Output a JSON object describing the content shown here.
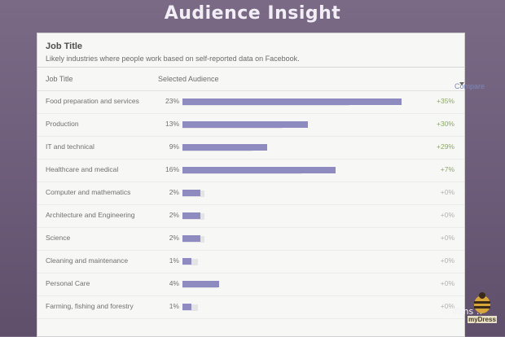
{
  "slide": {
    "title": "Audience Insight"
  },
  "panel": {
    "title": "Job Title",
    "subtitle": "Likely industries where people work based on self-reported data on Facebook.",
    "columns": {
      "job_title": "Job Title",
      "selected_audience": "Selected Audience",
      "compare": "Compare"
    },
    "rows": [
      {
        "label": "Food preparation and services",
        "pct": "23%",
        "value": 0.96,
        "compare": "+35%"
      },
      {
        "label": "Production",
        "pct": "13%",
        "value": 0.55,
        "compare": "+30%"
      },
      {
        "label": "IT and technical",
        "pct": "9%",
        "value": 0.37,
        "compare": "+29%"
      },
      {
        "label": "Healthcare and medical",
        "pct": "16%",
        "value": 0.67,
        "compare": "+7%"
      },
      {
        "label": "Computer and mathematics",
        "pct": "2%",
        "value": 0.08,
        "compare": "+0%"
      },
      {
        "label": "Architecture and Engineering",
        "pct": "2%",
        "value": 0.08,
        "compare": "+0%"
      },
      {
        "label": "Science",
        "pct": "2%",
        "value": 0.08,
        "compare": "+0%"
      },
      {
        "label": "Cleaning and maintenance",
        "pct": "1%",
        "value": 0.04,
        "compare": "+0%"
      },
      {
        "label": "Personal Care",
        "pct": "4%",
        "value": 0.16,
        "compare": "+0%"
      },
      {
        "label": "Farming, fishing and forestry",
        "pct": "1%",
        "value": 0.04,
        "compare": "+0%"
      }
    ]
  },
  "watermark": ":: ifans ::",
  "logo_text": "myDress",
  "colors": {
    "bar": "#8e8bc0",
    "positive": "#8aa864",
    "neutral": "#b0b0b0"
  }
}
